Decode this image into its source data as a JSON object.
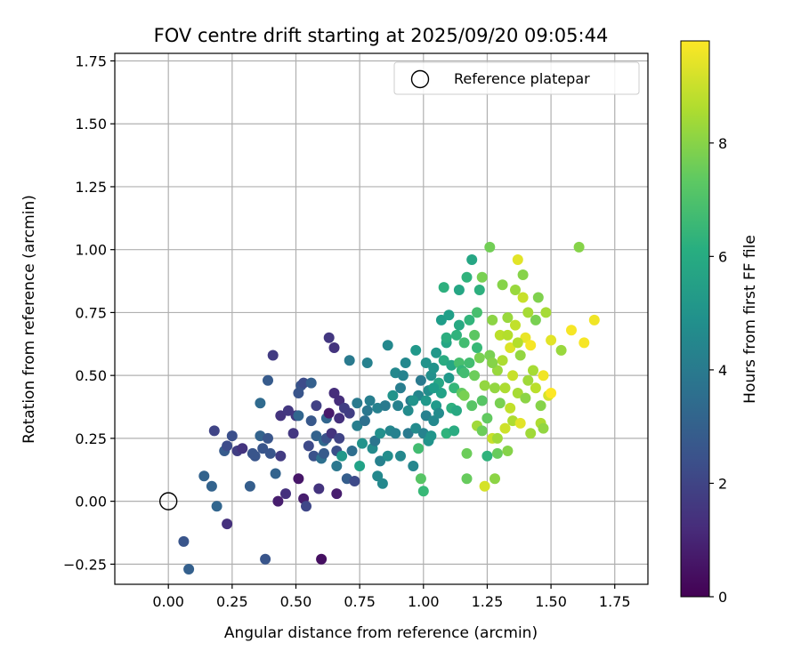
{
  "chart_data": {
    "type": "scatter",
    "title": "FOV centre drift starting at 2025/09/20 09:05:44",
    "xlabel": "Angular distance from reference (arcmin)",
    "ylabel": "Rotation from reference (arcmin)",
    "xlim": [
      -0.21,
      1.88
    ],
    "ylim": [
      -0.33,
      1.78
    ],
    "xticks": [
      0.0,
      0.25,
      0.5,
      0.75,
      1.0,
      1.25,
      1.5,
      1.75
    ],
    "xtick_labels": [
      "0.00",
      "0.25",
      "0.50",
      "0.75",
      "1.00",
      "1.25",
      "1.50",
      "1.75"
    ],
    "yticks": [
      -0.25,
      0.0,
      0.25,
      0.5,
      0.75,
      1.0,
      1.25,
      1.5,
      1.75
    ],
    "ytick_labels": [
      "−0.25",
      "0.00",
      "0.25",
      "0.50",
      "0.75",
      "1.00",
      "1.25",
      "1.50",
      "1.75"
    ],
    "grid": true,
    "legend": {
      "placement": "top-right",
      "entries": [
        "Reference platepar"
      ]
    },
    "reference_point": {
      "x": 0.0,
      "y": 0.0,
      "label": "Reference platepar"
    },
    "colorbar": {
      "label": "Hours from first FF file",
      "colormap": "viridis",
      "range": [
        0,
        9.8
      ],
      "ticks": [
        0,
        2,
        4,
        6,
        8
      ],
      "tick_labels": [
        "0",
        "2",
        "4",
        "6",
        "8"
      ]
    },
    "points": [
      [
        0.06,
        -0.16,
        2.6
      ],
      [
        0.08,
        -0.27,
        3.0
      ],
      [
        0.14,
        0.1,
        3.1
      ],
      [
        0.17,
        0.06,
        3.1
      ],
      [
        0.19,
        -0.02,
        3.2
      ],
      [
        0.18,
        0.28,
        2.0
      ],
      [
        0.22,
        0.2,
        2.8
      ],
      [
        0.23,
        0.22,
        2.3
      ],
      [
        0.23,
        -0.09,
        1.4
      ],
      [
        0.25,
        0.26,
        2.4
      ],
      [
        0.27,
        0.2,
        1.8
      ],
      [
        0.29,
        0.21,
        1.5
      ],
      [
        0.32,
        0.06,
        2.9
      ],
      [
        0.33,
        0.19,
        2.6
      ],
      [
        0.34,
        0.18,
        2.6
      ],
      [
        0.36,
        0.26,
        3.1
      ],
      [
        0.36,
        0.39,
        3.4
      ],
      [
        0.37,
        0.21,
        2.6
      ],
      [
        0.38,
        -0.23,
        2.6
      ],
      [
        0.39,
        0.48,
        2.8
      ],
      [
        0.39,
        0.25,
        2.6
      ],
      [
        0.4,
        0.19,
        2.6
      ],
      [
        0.41,
        0.58,
        1.7
      ],
      [
        0.42,
        0.11,
        3.1
      ],
      [
        0.43,
        0.0,
        0.8
      ],
      [
        0.44,
        0.34,
        1.5
      ],
      [
        0.44,
        0.18,
        1.7
      ],
      [
        0.46,
        0.03,
        1.4
      ],
      [
        0.47,
        0.36,
        1.6
      ],
      [
        0.49,
        0.27,
        1.6
      ],
      [
        0.5,
        0.34,
        1.6
      ],
      [
        0.51,
        0.43,
        2.6
      ],
      [
        0.51,
        0.34,
        3.2
      ],
      [
        0.51,
        0.09,
        0.6
      ],
      [
        0.52,
        0.46,
        2.6
      ],
      [
        0.53,
        0.01,
        0.8
      ],
      [
        0.53,
        0.47,
        2.3
      ],
      [
        0.54,
        -0.02,
        2.1
      ],
      [
        0.55,
        0.22,
        2.2
      ],
      [
        0.56,
        0.32,
        2.7
      ],
      [
        0.56,
        0.47,
        3.0
      ],
      [
        0.57,
        0.18,
        2.5
      ],
      [
        0.58,
        0.38,
        1.9
      ],
      [
        0.58,
        0.26,
        3.1
      ],
      [
        0.59,
        0.05,
        1.5
      ],
      [
        0.6,
        -0.23,
        0.4
      ],
      [
        0.6,
        0.17,
        3.6
      ],
      [
        0.61,
        0.24,
        3.3
      ],
      [
        0.61,
        0.19,
        2.8
      ],
      [
        0.62,
        0.33,
        3.2
      ],
      [
        0.62,
        0.25,
        2.5
      ],
      [
        0.63,
        0.35,
        0.7
      ],
      [
        0.63,
        0.65,
        1.6
      ],
      [
        0.64,
        0.27,
        1.5
      ],
      [
        0.65,
        0.61,
        1.5
      ],
      [
        0.65,
        0.43,
        1.3
      ],
      [
        0.66,
        0.2,
        2.4
      ],
      [
        0.66,
        0.14,
        3.9
      ],
      [
        0.66,
        0.03,
        0.8
      ],
      [
        0.67,
        0.4,
        1.3
      ],
      [
        0.67,
        0.33,
        1.4
      ],
      [
        0.67,
        0.25,
        2.0
      ],
      [
        0.68,
        0.18,
        5.2
      ],
      [
        0.69,
        0.37,
        1.8
      ],
      [
        0.7,
        0.09,
        2.9
      ],
      [
        0.71,
        0.35,
        1.8
      ],
      [
        0.71,
        0.56,
        4.0
      ],
      [
        0.72,
        0.2,
        3.5
      ],
      [
        0.73,
        0.08,
        2.2
      ],
      [
        0.74,
        0.3,
        4.2
      ],
      [
        0.74,
        0.39,
        4.0
      ],
      [
        0.75,
        0.14,
        5.6
      ],
      [
        0.76,
        0.23,
        5.0
      ],
      [
        0.77,
        0.32,
        3.6
      ],
      [
        0.78,
        0.55,
        4.3
      ],
      [
        0.78,
        0.36,
        3.9
      ],
      [
        0.79,
        0.4,
        4.2
      ],
      [
        0.8,
        0.21,
        4.7
      ],
      [
        0.81,
        0.24,
        3.8
      ],
      [
        0.82,
        0.1,
        4.6
      ],
      [
        0.82,
        0.37,
        4.3
      ],
      [
        0.83,
        0.27,
        4.9
      ],
      [
        0.83,
        0.16,
        4.3
      ],
      [
        0.84,
        0.07,
        4.6
      ],
      [
        0.85,
        0.38,
        4.0
      ],
      [
        0.86,
        0.62,
        4.6
      ],
      [
        0.86,
        0.18,
        4.8
      ],
      [
        0.87,
        0.28,
        4.5
      ],
      [
        0.88,
        0.42,
        5.0
      ],
      [
        0.89,
        0.51,
        4.6
      ],
      [
        0.89,
        0.27,
        4.3
      ],
      [
        0.9,
        0.38,
        4.3
      ],
      [
        0.91,
        0.18,
        4.6
      ],
      [
        0.91,
        0.45,
        4.2
      ],
      [
        0.92,
        0.5,
        4.4
      ],
      [
        0.93,
        0.55,
        4.6
      ],
      [
        0.94,
        0.27,
        4.0
      ],
      [
        0.94,
        0.36,
        4.7
      ],
      [
        0.95,
        0.4,
        4.1
      ],
      [
        0.96,
        0.14,
        4.5
      ],
      [
        0.97,
        0.6,
        5.2
      ],
      [
        0.97,
        0.29,
        4.7
      ],
      [
        0.98,
        0.21,
        6.8
      ],
      [
        0.98,
        0.42,
        4.5
      ],
      [
        0.99,
        0.09,
        7.2
      ],
      [
        0.99,
        0.48,
        4.0
      ],
      [
        1.0,
        0.04,
        6.6
      ],
      [
        1.0,
        0.27,
        4.4
      ],
      [
        1.01,
        0.4,
        5.2
      ],
      [
        1.01,
        0.34,
        4.3
      ],
      [
        1.01,
        0.55,
        5.0
      ],
      [
        1.02,
        0.24,
        5.0
      ],
      [
        1.02,
        0.44,
        4.8
      ],
      [
        1.03,
        0.5,
        4.9
      ],
      [
        1.03,
        0.26,
        5.1
      ],
      [
        1.04,
        0.32,
        4.6
      ],
      [
        1.04,
        0.53,
        5.0
      ],
      [
        1.05,
        0.38,
        5.3
      ],
      [
        1.05,
        0.59,
        5.2
      ],
      [
        1.06,
        0.47,
        5.8
      ],
      [
        1.06,
        0.35,
        4.7
      ],
      [
        1.07,
        0.72,
        5.4
      ],
      [
        1.07,
        0.43,
        5.6
      ],
      [
        1.08,
        0.85,
        6.2
      ],
      [
        1.08,
        0.56,
        6.0
      ],
      [
        1.09,
        0.63,
        5.8
      ],
      [
        1.09,
        0.27,
        6.3
      ],
      [
        1.1,
        0.49,
        5.2
      ],
      [
        1.1,
        0.74,
        5.5
      ],
      [
        1.11,
        0.37,
        6.2
      ],
      [
        1.11,
        0.54,
        5.8
      ],
      [
        1.12,
        0.28,
        6.0
      ],
      [
        1.12,
        0.45,
        6.5
      ],
      [
        1.13,
        0.66,
        6.3
      ],
      [
        1.13,
        0.36,
        5.9
      ],
      [
        1.14,
        0.84,
        5.8
      ],
      [
        1.14,
        0.55,
        6.9
      ],
      [
        1.15,
        0.52,
        6.5
      ],
      [
        1.15,
        0.43,
        7.4
      ],
      [
        1.16,
        0.63,
        6.8
      ],
      [
        1.16,
        0.42,
        7.8
      ],
      [
        1.17,
        0.89,
        6.3
      ],
      [
        1.17,
        0.19,
        7.6
      ],
      [
        1.17,
        0.09,
        7.5
      ],
      [
        1.18,
        0.72,
        6.4
      ],
      [
        1.18,
        0.55,
        6.8
      ],
      [
        1.19,
        0.96,
        5.8
      ],
      [
        1.19,
        0.38,
        7.2
      ],
      [
        1.2,
        0.5,
        7.6
      ],
      [
        1.2,
        0.66,
        7.3
      ],
      [
        1.21,
        0.3,
        8.4
      ],
      [
        1.21,
        0.75,
        6.9
      ],
      [
        1.22,
        0.84,
        6.2
      ],
      [
        1.22,
        0.57,
        7.8
      ],
      [
        1.23,
        0.28,
        7.6
      ],
      [
        1.23,
        0.89,
        7.8
      ],
      [
        1.24,
        0.06,
        9.2
      ],
      [
        1.24,
        0.46,
        8.2
      ],
      [
        1.25,
        0.33,
        7.4
      ],
      [
        1.25,
        0.18,
        6.3
      ],
      [
        1.26,
        0.58,
        7.8
      ],
      [
        1.26,
        1.01,
        7.7
      ],
      [
        1.27,
        0.72,
        8.1
      ],
      [
        1.27,
        0.25,
        9.0
      ],
      [
        1.28,
        0.45,
        8.2
      ],
      [
        1.28,
        0.09,
        8.1
      ],
      [
        1.29,
        0.52,
        8.3
      ],
      [
        1.29,
        0.19,
        7.5
      ],
      [
        1.3,
        0.66,
        8.8
      ],
      [
        1.3,
        0.39,
        7.8
      ],
      [
        1.31,
        0.86,
        8.0
      ],
      [
        1.31,
        0.56,
        8.6
      ],
      [
        1.32,
        0.29,
        9.1
      ],
      [
        1.32,
        0.45,
        8.6
      ],
      [
        1.33,
        0.2,
        8.0
      ],
      [
        1.33,
        0.73,
        8.3
      ],
      [
        1.34,
        0.61,
        9.3
      ],
      [
        1.34,
        0.37,
        8.9
      ],
      [
        1.35,
        0.5,
        9.0
      ],
      [
        1.35,
        0.32,
        8.6
      ],
      [
        1.36,
        0.84,
        8.3
      ],
      [
        1.36,
        0.7,
        8.9
      ],
      [
        1.37,
        0.96,
        9.4
      ],
      [
        1.37,
        0.43,
        8.5
      ],
      [
        1.38,
        0.58,
        8.2
      ],
      [
        1.38,
        0.31,
        9.4
      ],
      [
        1.39,
        0.9,
        8.0
      ],
      [
        1.39,
        0.81,
        9.0
      ],
      [
        1.4,
        0.65,
        9.5
      ],
      [
        1.4,
        0.41,
        8.1
      ],
      [
        1.41,
        0.75,
        8.5
      ],
      [
        1.41,
        0.48,
        8.4
      ],
      [
        1.42,
        0.62,
        9.7
      ],
      [
        1.42,
        0.27,
        8.4
      ],
      [
        1.43,
        0.52,
        8.5
      ],
      [
        1.44,
        0.72,
        7.8
      ],
      [
        1.45,
        0.81,
        7.9
      ],
      [
        1.46,
        0.38,
        8.0
      ],
      [
        1.46,
        0.31,
        8.6
      ],
      [
        1.47,
        0.5,
        9.6
      ],
      [
        1.47,
        0.29,
        8.2
      ],
      [
        1.48,
        0.75,
        8.5
      ],
      [
        1.49,
        0.42,
        9.2
      ],
      [
        1.5,
        0.64,
        9.4
      ],
      [
        1.5,
        0.43,
        9.8
      ],
      [
        1.54,
        0.6,
        8.3
      ],
      [
        1.58,
        0.68,
        9.7
      ],
      [
        1.61,
        1.01,
        8.0
      ],
      [
        1.63,
        0.63,
        9.7
      ],
      [
        1.67,
        0.72,
        9.6
      ],
      [
        1.09,
        0.65,
        6.1
      ],
      [
        1.14,
        0.7,
        5.9
      ],
      [
        1.21,
        0.61,
        6.6
      ],
      [
        1.27,
        0.55,
        8.0
      ],
      [
        1.33,
        0.66,
        8.7
      ],
      [
        1.44,
        0.45,
        8.8
      ],
      [
        0.96,
        0.4,
        5.0
      ],
      [
        1.04,
        0.45,
        5.4
      ],
      [
        1.16,
        0.51,
        6.8
      ],
      [
        1.23,
        0.4,
        7.2
      ],
      [
        1.29,
        0.25,
        8.4
      ],
      [
        1.37,
        0.63,
        8.7
      ]
    ]
  }
}
